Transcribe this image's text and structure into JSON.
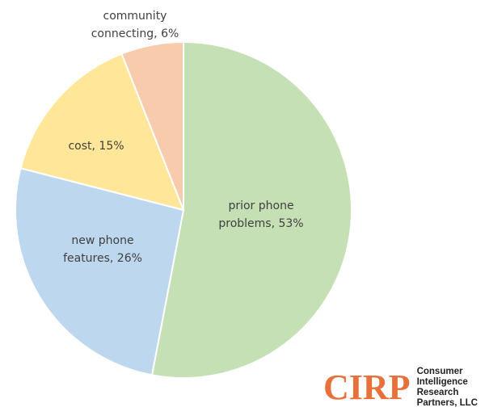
{
  "chart_data": {
    "type": "pie",
    "start": "12 o'clock, clockwise",
    "slices": [
      {
        "label": "prior phone problems, 53%",
        "line1": "prior phone",
        "line2": "problems, 53%",
        "value": 53,
        "color": "#C5E0B4"
      },
      {
        "label": "new phone features, 26%",
        "line1": "new phone",
        "line2": "features, 26%",
        "value": 26,
        "color": "#BDD7EE"
      },
      {
        "label": "cost, 15%",
        "line1": "cost, 15%",
        "line2": "",
        "value": 15,
        "color": "#FFE699"
      },
      {
        "label": "community connecting, 6%",
        "line1": "community",
        "line2": "connecting, 6%",
        "value": 6,
        "color": "#F8CBAD"
      }
    ]
  },
  "logo": {
    "mark": "CIRP",
    "text": [
      "Consumer",
      "Intelligence",
      "Research",
      "Partners, LLC"
    ],
    "color": "#E8703A"
  }
}
